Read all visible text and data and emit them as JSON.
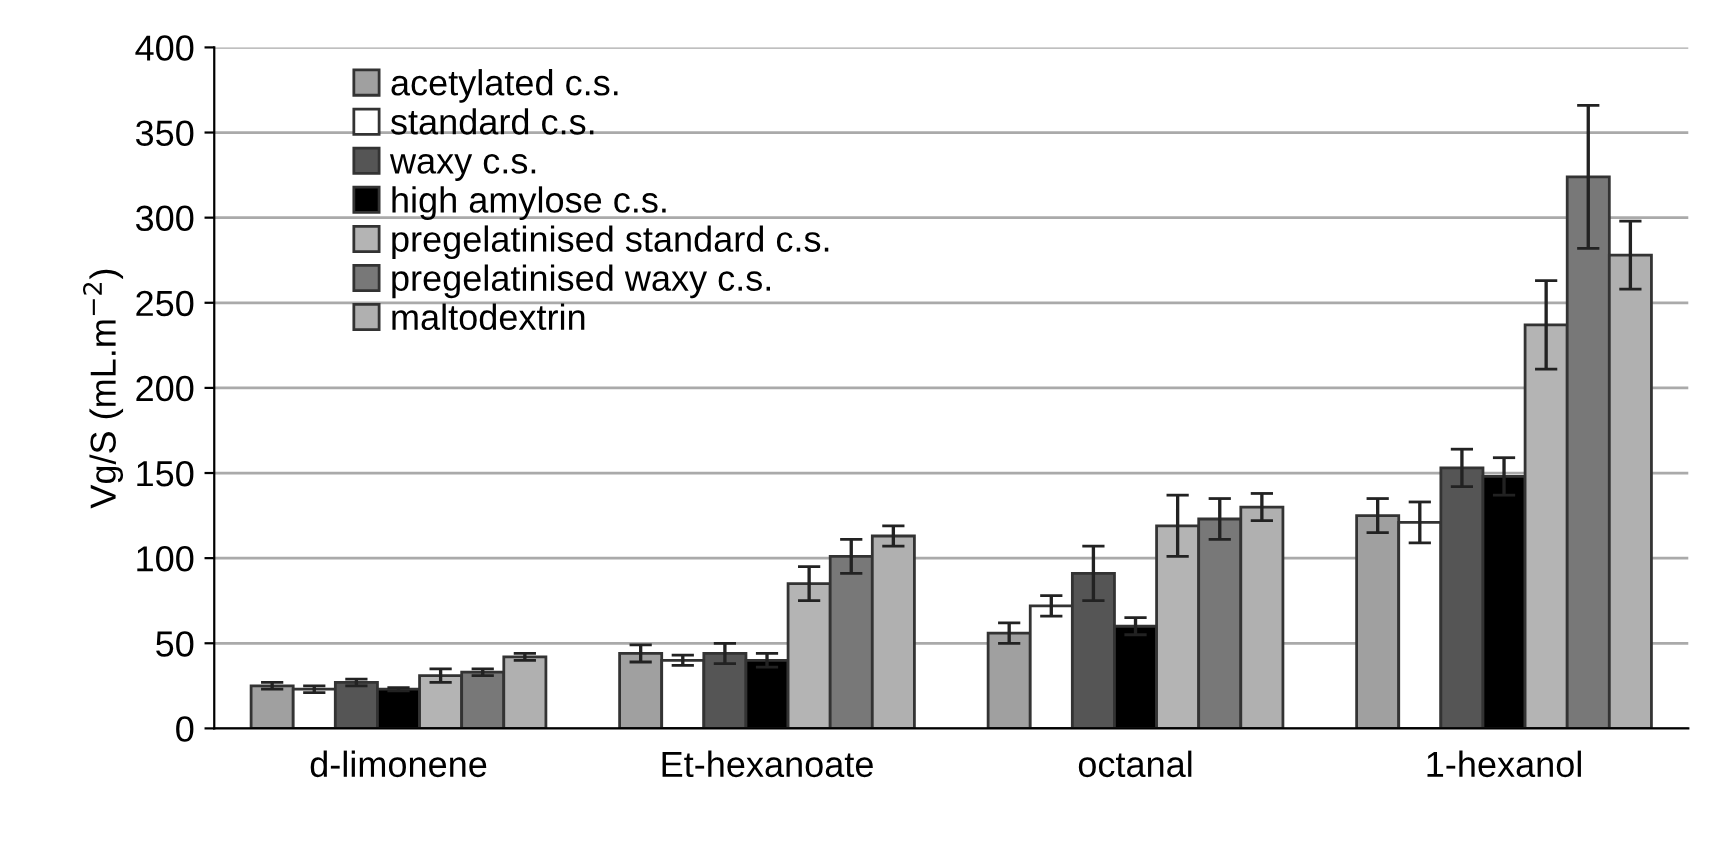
{
  "chart_data": {
    "type": "bar",
    "ylabel": "Vg/S (mL.m$^{−2}$)",
    "categories": [
      "d-limonene",
      "Et-hexanoate",
      "octanal",
      "1-hexanol"
    ],
    "series": [
      {
        "name": "acetylated c.s.",
        "color": "#a0a0a0",
        "values": [
          25,
          44,
          56,
          125
        ],
        "errors": [
          2,
          5,
          6,
          10
        ]
      },
      {
        "name": "standard c.s.",
        "color": "#ffffff",
        "values": [
          23,
          40,
          72,
          121
        ],
        "errors": [
          2,
          3,
          6,
          12
        ]
      },
      {
        "name": "waxy c.s.",
        "color": "#555555",
        "values": [
          27,
          44,
          91,
          153
        ],
        "errors": [
          2,
          6,
          16,
          11
        ]
      },
      {
        "name": "high amylose c.s.",
        "color": "#000000",
        "values": [
          23,
          40,
          60,
          148
        ],
        "errors": [
          1,
          4,
          5,
          11
        ]
      },
      {
        "name": "pregelatinised standard c.s.",
        "color": "#b4b4b4",
        "values": [
          31,
          85,
          119,
          237
        ],
        "errors": [
          4,
          10,
          18,
          26
        ]
      },
      {
        "name": "pregelatinised waxy c.s.",
        "color": "#787878",
        "values": [
          33,
          101,
          123,
          324
        ],
        "errors": [
          2,
          10,
          12,
          42
        ]
      },
      {
        "name": "maltodextrin",
        "color": "#b0b0b0",
        "values": [
          42,
          113,
          130,
          278
        ],
        "errors": [
          2,
          6,
          8,
          20
        ]
      }
    ],
    "ylim": [
      0,
      400
    ],
    "yticks": [
      0,
      50,
      100,
      150,
      200,
      250,
      300,
      350,
      400
    ],
    "grid": "y",
    "legend": "top left"
  }
}
